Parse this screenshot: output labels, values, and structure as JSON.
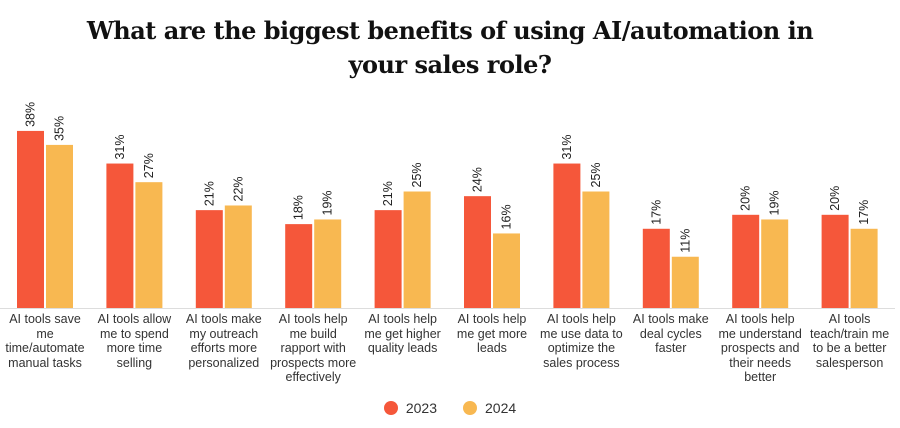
{
  "chart_data": {
    "type": "bar",
    "title": "What are the biggest benefits of using AI/automation in your sales role?",
    "title_lines": [
      "What are the biggest benefits of using AI/automation in",
      "your sales role?"
    ],
    "categories": [
      "AI tools save me time/automate manual tasks",
      "AI tools allow me to spend more time selling",
      "AI tools make my outreach efforts more personalized",
      "AI tools help me build rapport with prospects more effectively",
      "AI tools help me get higher quality leads",
      "AI tools help me get more leads",
      "AI tools help me use data to optimize the sales process",
      "AI tools make deal cycles faster",
      "AI tools help me understand prospects and their needs better",
      "AI tools teach/train me to be a better salesperson"
    ],
    "category_lines": [
      [
        "AI tools save",
        "me",
        "time/automate",
        "manual tasks"
      ],
      [
        "AI tools allow",
        "me to spend",
        "more time",
        "selling"
      ],
      [
        "AI tools make",
        "my outreach",
        "efforts more",
        "personalized"
      ],
      [
        "AI tools help",
        "me build",
        "rapport with",
        "prospects more",
        "effectively"
      ],
      [
        "AI tools help",
        "me get higher",
        "quality leads"
      ],
      [
        "AI tools help",
        "me get more",
        "leads"
      ],
      [
        "AI tools help",
        "me use data to",
        "optimize the",
        "sales process"
      ],
      [
        "AI tools make",
        "deal cycles",
        "faster"
      ],
      [
        "AI tools help",
        "me understand",
        "prospects and",
        "their needs",
        "better"
      ],
      [
        "AI tools",
        "teach/train me",
        "to be a better",
        "salesperson"
      ]
    ],
    "series": [
      {
        "name": "2023",
        "color": "#F5573A",
        "values": [
          38,
          31,
          21,
          18,
          21,
          24,
          31,
          17,
          20,
          20
        ]
      },
      {
        "name": "2024",
        "color": "#F8B851",
        "values": [
          35,
          27,
          22,
          19,
          25,
          16,
          25,
          11,
          19,
          17
        ]
      }
    ],
    "value_suffix": "%",
    "ylim": [
      0,
      40
    ],
    "grid": false,
    "legend_position": "bottom"
  }
}
